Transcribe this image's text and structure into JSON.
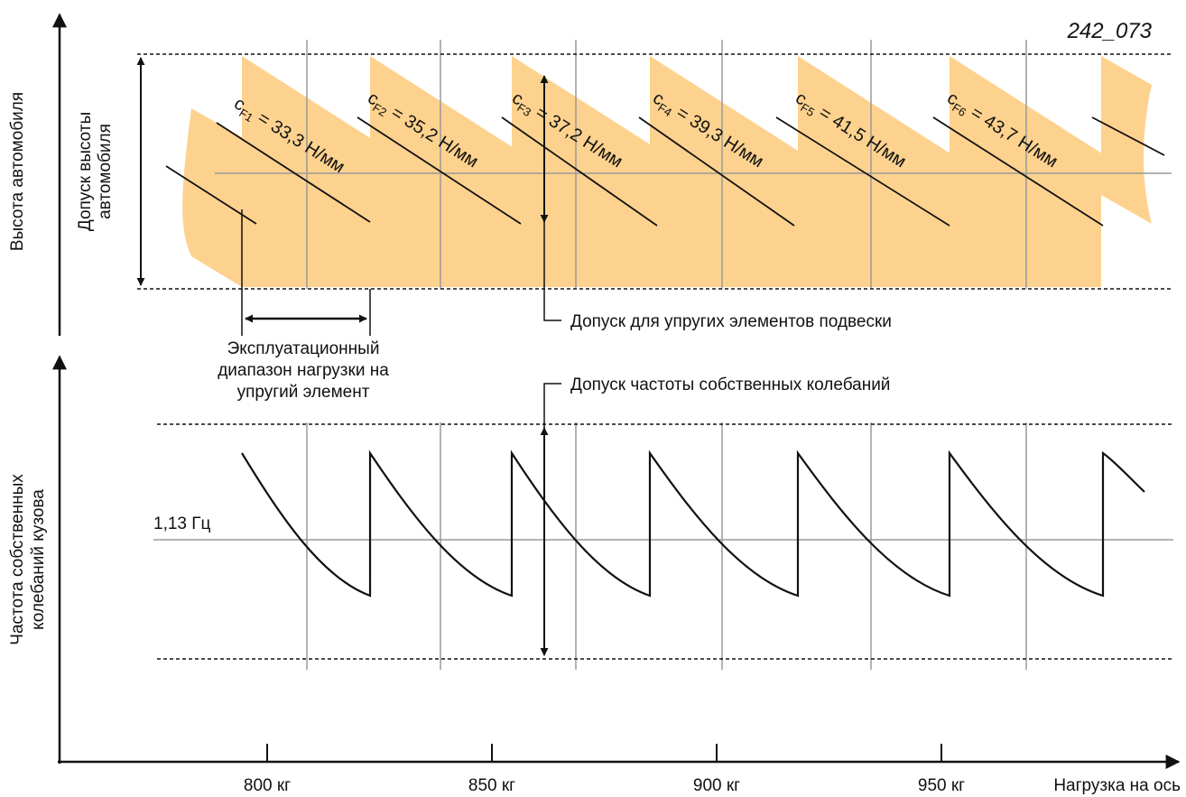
{
  "figure_id": "242_073",
  "top_panel": {
    "y_axis_label": "Высота автомобиля",
    "tolerance_label_line1": "Допуск высоты",
    "tolerance_label_line2": "автомобиля",
    "spring_tolerance_label": "Допуск для упругих элементов подвески",
    "load_range_line1": "Эксплуатационный",
    "load_range_line2": "диапазон нагрузки на",
    "load_range_line3": "упругий элемент",
    "bands": [
      {
        "prefix": "c",
        "sub": "F1",
        "value": " = 33,3 Н/мм"
      },
      {
        "prefix": "c",
        "sub": "F2",
        "value": " = 35,2 Н/мм"
      },
      {
        "prefix": "c",
        "sub": "F3",
        "value": " = 37,2 Н/мм"
      },
      {
        "prefix": "c",
        "sub": "F4",
        "value": " = 39,3 Н/мм"
      },
      {
        "prefix": "c",
        "sub": "F5",
        "value": " = 41,5 Н/мм"
      },
      {
        "prefix": "c",
        "sub": "F6",
        "value": " = 43,7 Н/мм"
      }
    ]
  },
  "bottom_panel": {
    "y_axis_label_line1": "Частота собственных",
    "y_axis_label_line2": "колебаний кузова",
    "reference_label": "1,13 Гц",
    "frequency_tolerance_label": "Допуск частоты собственных колебаний"
  },
  "x_axis": {
    "label": "Нагрузка на ось",
    "ticks": [
      "800 кг",
      "850 кг",
      "900 кг",
      "950 кг"
    ]
  },
  "colors": {
    "band_fill": "#fdd28e",
    "grid": "#9a9a9a",
    "ink": "#111111"
  }
}
